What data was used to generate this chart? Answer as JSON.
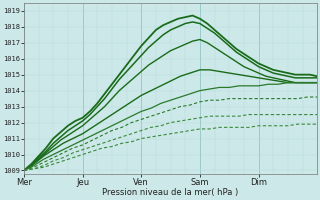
{
  "xlabel": "Pression niveau de la mer( hPa )",
  "background_color": "#cce8e8",
  "grid_color_major": "#99cccc",
  "grid_color_minor": "#b8dada",
  "ylim": [
    1008.8,
    1019.5
  ],
  "yticks": [
    1009,
    1010,
    1011,
    1012,
    1013,
    1014,
    1015,
    1016,
    1017,
    1018,
    1019
  ],
  "day_labels": [
    "Mer",
    "Jeu",
    "Ven",
    "Sam",
    "Dim"
  ],
  "day_positions": [
    0,
    24,
    48,
    72,
    96
  ],
  "total_hours": 120,
  "curves": [
    {
      "points": [
        [
          0,
          1009.0
        ],
        [
          3,
          1009.4
        ],
        [
          6,
          1009.9
        ],
        [
          9,
          1010.4
        ],
        [
          12,
          1011.0
        ],
        [
          15,
          1011.4
        ],
        [
          18,
          1011.8
        ],
        [
          21,
          1012.1
        ],
        [
          24,
          1012.3
        ],
        [
          27,
          1012.7
        ],
        [
          30,
          1013.2
        ],
        [
          33,
          1013.8
        ],
        [
          36,
          1014.4
        ],
        [
          39,
          1015.0
        ],
        [
          42,
          1015.6
        ],
        [
          45,
          1016.2
        ],
        [
          48,
          1016.8
        ],
        [
          51,
          1017.3
        ],
        [
          54,
          1017.8
        ],
        [
          57,
          1018.1
        ],
        [
          60,
          1018.3
        ],
        [
          63,
          1018.5
        ],
        [
          66,
          1018.6
        ],
        [
          69,
          1018.7
        ],
        [
          72,
          1018.5
        ],
        [
          75,
          1018.2
        ],
        [
          78,
          1017.8
        ],
        [
          81,
          1017.4
        ],
        [
          84,
          1017.0
        ],
        [
          87,
          1016.6
        ],
        [
          90,
          1016.3
        ],
        [
          93,
          1016.0
        ],
        [
          96,
          1015.7
        ],
        [
          99,
          1015.5
        ],
        [
          102,
          1015.3
        ],
        [
          105,
          1015.2
        ],
        [
          108,
          1015.1
        ],
        [
          111,
          1015.0
        ],
        [
          114,
          1015.0
        ],
        [
          117,
          1015.0
        ],
        [
          120,
          1014.9
        ]
      ],
      "lw": 1.3,
      "color": "#1a6b1a",
      "style": "solid"
    },
    {
      "points": [
        [
          0,
          1009.0
        ],
        [
          3,
          1009.3
        ],
        [
          6,
          1009.8
        ],
        [
          9,
          1010.2
        ],
        [
          12,
          1010.7
        ],
        [
          15,
          1011.1
        ],
        [
          18,
          1011.5
        ],
        [
          21,
          1011.8
        ],
        [
          24,
          1012.1
        ],
        [
          27,
          1012.5
        ],
        [
          30,
          1013.0
        ],
        [
          33,
          1013.5
        ],
        [
          36,
          1014.1
        ],
        [
          39,
          1014.7
        ],
        [
          42,
          1015.2
        ],
        [
          45,
          1015.7
        ],
        [
          48,
          1016.2
        ],
        [
          51,
          1016.7
        ],
        [
          54,
          1017.1
        ],
        [
          57,
          1017.5
        ],
        [
          60,
          1017.8
        ],
        [
          63,
          1018.0
        ],
        [
          66,
          1018.2
        ],
        [
          69,
          1018.3
        ],
        [
          72,
          1018.2
        ],
        [
          75,
          1017.9
        ],
        [
          78,
          1017.6
        ],
        [
          81,
          1017.2
        ],
        [
          84,
          1016.8
        ],
        [
          87,
          1016.4
        ],
        [
          90,
          1016.1
        ],
        [
          93,
          1015.8
        ],
        [
          96,
          1015.5
        ],
        [
          99,
          1015.3
        ],
        [
          102,
          1015.1
        ],
        [
          105,
          1015.0
        ],
        [
          108,
          1014.9
        ],
        [
          111,
          1014.8
        ],
        [
          114,
          1014.8
        ],
        [
          117,
          1014.8
        ],
        [
          120,
          1014.8
        ]
      ],
      "lw": 1.1,
      "color": "#1a6b1a",
      "style": "solid"
    },
    {
      "points": [
        [
          0,
          1009.0
        ],
        [
          3,
          1009.3
        ],
        [
          6,
          1009.7
        ],
        [
          9,
          1010.1
        ],
        [
          12,
          1010.5
        ],
        [
          15,
          1010.9
        ],
        [
          18,
          1011.2
        ],
        [
          21,
          1011.5
        ],
        [
          24,
          1011.8
        ],
        [
          27,
          1012.2
        ],
        [
          30,
          1012.6
        ],
        [
          33,
          1013.0
        ],
        [
          36,
          1013.5
        ],
        [
          39,
          1014.0
        ],
        [
          42,
          1014.4
        ],
        [
          45,
          1014.8
        ],
        [
          48,
          1015.2
        ],
        [
          51,
          1015.6
        ],
        [
          54,
          1015.9
        ],
        [
          57,
          1016.2
        ],
        [
          60,
          1016.5
        ],
        [
          63,
          1016.7
        ],
        [
          66,
          1016.9
        ],
        [
          69,
          1017.1
        ],
        [
          72,
          1017.2
        ],
        [
          75,
          1017.0
        ],
        [
          78,
          1016.7
        ],
        [
          81,
          1016.4
        ],
        [
          84,
          1016.1
        ],
        [
          87,
          1015.8
        ],
        [
          90,
          1015.5
        ],
        [
          93,
          1015.3
        ],
        [
          96,
          1015.1
        ],
        [
          99,
          1014.9
        ],
        [
          102,
          1014.8
        ],
        [
          105,
          1014.7
        ],
        [
          108,
          1014.6
        ],
        [
          111,
          1014.5
        ],
        [
          114,
          1014.5
        ],
        [
          117,
          1014.5
        ],
        [
          120,
          1014.5
        ]
      ],
      "lw": 1.0,
      "color": "#1a6b1a",
      "style": "solid"
    },
    {
      "points": [
        [
          0,
          1009.0
        ],
        [
          4,
          1009.4
        ],
        [
          8,
          1009.9
        ],
        [
          12,
          1010.3
        ],
        [
          16,
          1010.7
        ],
        [
          20,
          1011.0
        ],
        [
          24,
          1011.3
        ],
        [
          28,
          1011.7
        ],
        [
          32,
          1012.1
        ],
        [
          36,
          1012.5
        ],
        [
          40,
          1012.9
        ],
        [
          44,
          1013.3
        ],
        [
          48,
          1013.7
        ],
        [
          52,
          1014.0
        ],
        [
          56,
          1014.3
        ],
        [
          60,
          1014.6
        ],
        [
          64,
          1014.9
        ],
        [
          68,
          1015.1
        ],
        [
          72,
          1015.3
        ],
        [
          76,
          1015.3
        ],
        [
          80,
          1015.2
        ],
        [
          84,
          1015.1
        ],
        [
          88,
          1015.0
        ],
        [
          92,
          1014.9
        ],
        [
          96,
          1014.8
        ],
        [
          100,
          1014.7
        ],
        [
          104,
          1014.6
        ],
        [
          108,
          1014.5
        ],
        [
          112,
          1014.5
        ],
        [
          116,
          1014.5
        ],
        [
          120,
          1014.5
        ]
      ],
      "lw": 1.0,
      "color": "#1a6b1a",
      "style": "solid"
    },
    {
      "points": [
        [
          0,
          1009.0
        ],
        [
          4,
          1009.3
        ],
        [
          8,
          1009.7
        ],
        [
          12,
          1010.0
        ],
        [
          16,
          1010.3
        ],
        [
          20,
          1010.6
        ],
        [
          24,
          1010.9
        ],
        [
          28,
          1011.2
        ],
        [
          32,
          1011.5
        ],
        [
          36,
          1011.8
        ],
        [
          40,
          1012.1
        ],
        [
          44,
          1012.4
        ],
        [
          48,
          1012.7
        ],
        [
          52,
          1012.9
        ],
        [
          56,
          1013.2
        ],
        [
          60,
          1013.4
        ],
        [
          64,
          1013.6
        ],
        [
          68,
          1013.8
        ],
        [
          72,
          1014.0
        ],
        [
          76,
          1014.1
        ],
        [
          80,
          1014.2
        ],
        [
          84,
          1014.2
        ],
        [
          88,
          1014.3
        ],
        [
          92,
          1014.3
        ],
        [
          96,
          1014.3
        ],
        [
          100,
          1014.4
        ],
        [
          104,
          1014.4
        ],
        [
          108,
          1014.5
        ],
        [
          112,
          1014.5
        ],
        [
          116,
          1014.5
        ],
        [
          120,
          1014.5
        ]
      ],
      "lw": 0.9,
      "color": "#2a7a2a",
      "style": "solid"
    },
    {
      "points": [
        [
          0,
          1009.0
        ],
        [
          4,
          1009.2
        ],
        [
          8,
          1009.5
        ],
        [
          12,
          1009.8
        ],
        [
          16,
          1010.1
        ],
        [
          20,
          1010.4
        ],
        [
          24,
          1010.6
        ],
        [
          28,
          1010.9
        ],
        [
          32,
          1011.2
        ],
        [
          36,
          1011.5
        ],
        [
          40,
          1011.7
        ],
        [
          44,
          1012.0
        ],
        [
          48,
          1012.2
        ],
        [
          52,
          1012.4
        ],
        [
          56,
          1012.6
        ],
        [
          60,
          1012.8
        ],
        [
          64,
          1013.0
        ],
        [
          68,
          1013.1
        ],
        [
          72,
          1013.3
        ],
        [
          76,
          1013.4
        ],
        [
          80,
          1013.4
        ],
        [
          84,
          1013.5
        ],
        [
          88,
          1013.5
        ],
        [
          92,
          1013.5
        ],
        [
          96,
          1013.5
        ],
        [
          100,
          1013.5
        ],
        [
          104,
          1013.5
        ],
        [
          108,
          1013.5
        ],
        [
          112,
          1013.5
        ],
        [
          116,
          1013.6
        ],
        [
          120,
          1013.6
        ]
      ],
      "lw": 0.8,
      "color": "#2a7a2a",
      "style": "dashed"
    },
    {
      "points": [
        [
          0,
          1009.0
        ],
        [
          4,
          1009.1
        ],
        [
          8,
          1009.3
        ],
        [
          12,
          1009.6
        ],
        [
          16,
          1009.8
        ],
        [
          20,
          1010.1
        ],
        [
          24,
          1010.3
        ],
        [
          28,
          1010.5
        ],
        [
          32,
          1010.7
        ],
        [
          36,
          1010.9
        ],
        [
          40,
          1011.1
        ],
        [
          44,
          1011.3
        ],
        [
          48,
          1011.5
        ],
        [
          52,
          1011.7
        ],
        [
          56,
          1011.8
        ],
        [
          60,
          1012.0
        ],
        [
          64,
          1012.1
        ],
        [
          68,
          1012.2
        ],
        [
          72,
          1012.3
        ],
        [
          76,
          1012.4
        ],
        [
          80,
          1012.4
        ],
        [
          84,
          1012.4
        ],
        [
          88,
          1012.4
        ],
        [
          92,
          1012.5
        ],
        [
          96,
          1012.5
        ],
        [
          100,
          1012.5
        ],
        [
          104,
          1012.5
        ],
        [
          108,
          1012.5
        ],
        [
          112,
          1012.5
        ],
        [
          116,
          1012.5
        ],
        [
          120,
          1012.5
        ]
      ],
      "lw": 0.8,
      "color": "#3a8a3a",
      "style": "dashed"
    },
    {
      "points": [
        [
          0,
          1009.0
        ],
        [
          4,
          1009.1
        ],
        [
          8,
          1009.2
        ],
        [
          12,
          1009.4
        ],
        [
          16,
          1009.6
        ],
        [
          20,
          1009.8
        ],
        [
          24,
          1010.0
        ],
        [
          28,
          1010.2
        ],
        [
          32,
          1010.4
        ],
        [
          36,
          1010.5
        ],
        [
          40,
          1010.7
        ],
        [
          44,
          1010.8
        ],
        [
          48,
          1011.0
        ],
        [
          52,
          1011.1
        ],
        [
          56,
          1011.2
        ],
        [
          60,
          1011.3
        ],
        [
          64,
          1011.4
        ],
        [
          68,
          1011.5
        ],
        [
          72,
          1011.6
        ],
        [
          76,
          1011.6
        ],
        [
          80,
          1011.7
        ],
        [
          84,
          1011.7
        ],
        [
          88,
          1011.7
        ],
        [
          92,
          1011.7
        ],
        [
          96,
          1011.8
        ],
        [
          100,
          1011.8
        ],
        [
          104,
          1011.8
        ],
        [
          108,
          1011.8
        ],
        [
          112,
          1011.9
        ],
        [
          116,
          1011.9
        ],
        [
          120,
          1011.9
        ]
      ],
      "lw": 0.8,
      "color": "#3a8a3a",
      "style": "dashed"
    }
  ]
}
